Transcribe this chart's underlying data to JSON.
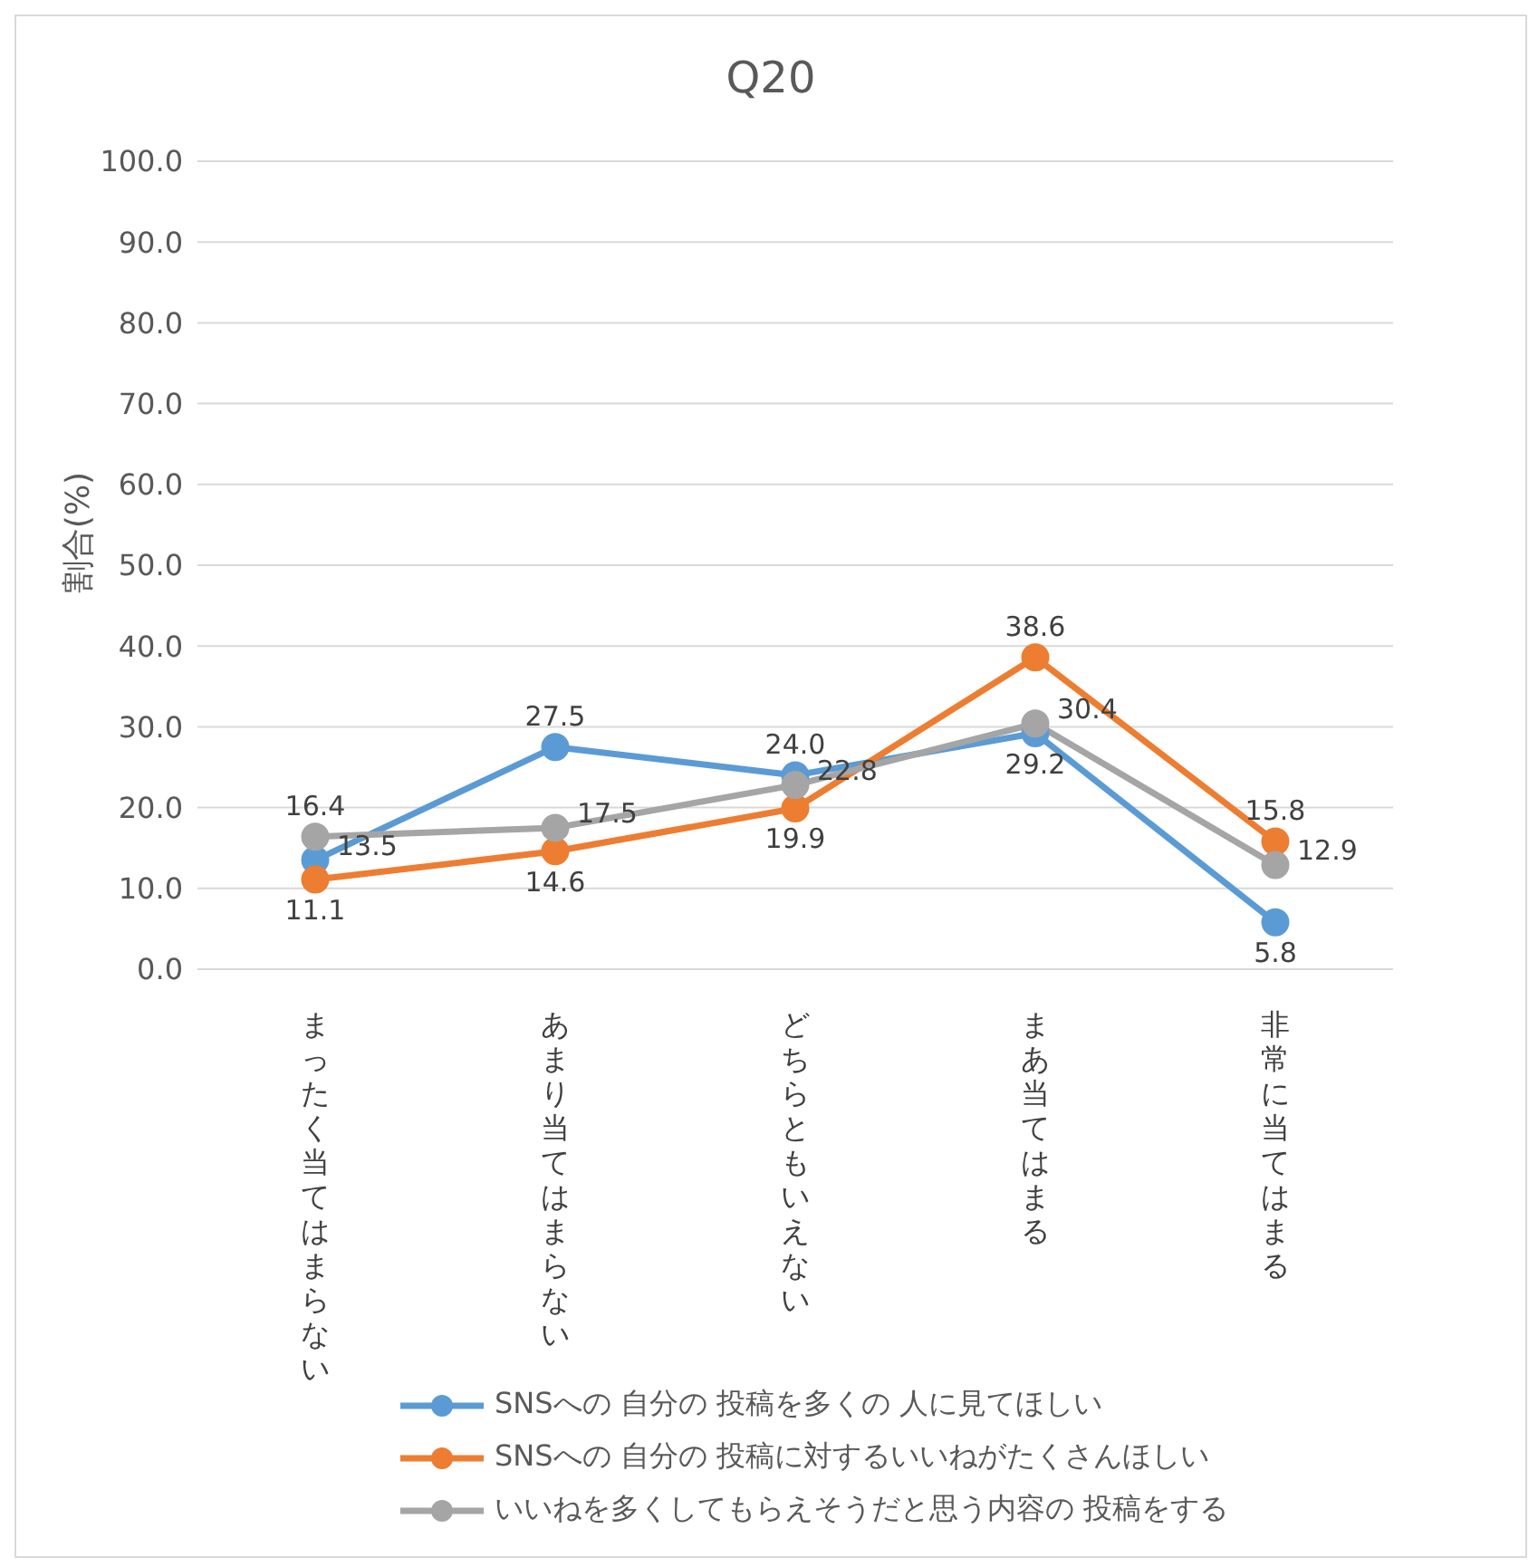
{
  "chart_data": {
    "type": "line",
    "title": "Q20",
    "ylabel": "割合(%)",
    "categories": [
      "まったく当てはまらない",
      "あまり当てはまらない",
      "どちらともいえない",
      "まあ当てはまる",
      "非常に当てはまる"
    ],
    "series": [
      {
        "name": "SNSへの 自分の 投稿を多くの 人に見てほしい",
        "color": "#5b9bd5",
        "values": [
          13.5,
          27.5,
          24.0,
          29.2,
          5.8
        ],
        "value_labels": [
          "13.5",
          "27.5",
          "24.0",
          "29.2",
          "5.8"
        ]
      },
      {
        "name": "SNSへの 自分の 投稿に対するいいねがたくさんほしい",
        "color": "#ed7d31",
        "values": [
          11.1,
          14.6,
          19.9,
          38.6,
          15.8
        ],
        "value_labels": [
          "11.1",
          "14.6",
          "19.9",
          "38.6",
          "15.8"
        ]
      },
      {
        "name": "いいねを多くしてもらえそうだと思う内容の 投稿をする",
        "color": "#a5a5a5",
        "values": [
          16.4,
          17.5,
          22.8,
          30.4,
          12.9
        ],
        "value_labels": [
          "16.4",
          "17.5",
          "22.8",
          "30.4",
          "12.9"
        ]
      }
    ],
    "ylim": [
      0,
      100
    ],
    "yticks": [
      {
        "value": 0,
        "label": "0.0"
      },
      {
        "value": 10,
        "label": "10.0"
      },
      {
        "value": 20,
        "label": "20.0"
      },
      {
        "value": 30,
        "label": "30.0"
      },
      {
        "value": 40,
        "label": "40.0"
      },
      {
        "value": 50,
        "label": "50.0"
      },
      {
        "value": 60,
        "label": "60.0"
      },
      {
        "value": 70,
        "label": "70.0"
      },
      {
        "value": 80,
        "label": "80.0"
      },
      {
        "value": 90,
        "label": "90.0"
      },
      {
        "value": 100,
        "label": "100.0"
      }
    ],
    "grid": "y",
    "legend": "bottom",
    "marker": "circle",
    "line_style": "solid"
  }
}
